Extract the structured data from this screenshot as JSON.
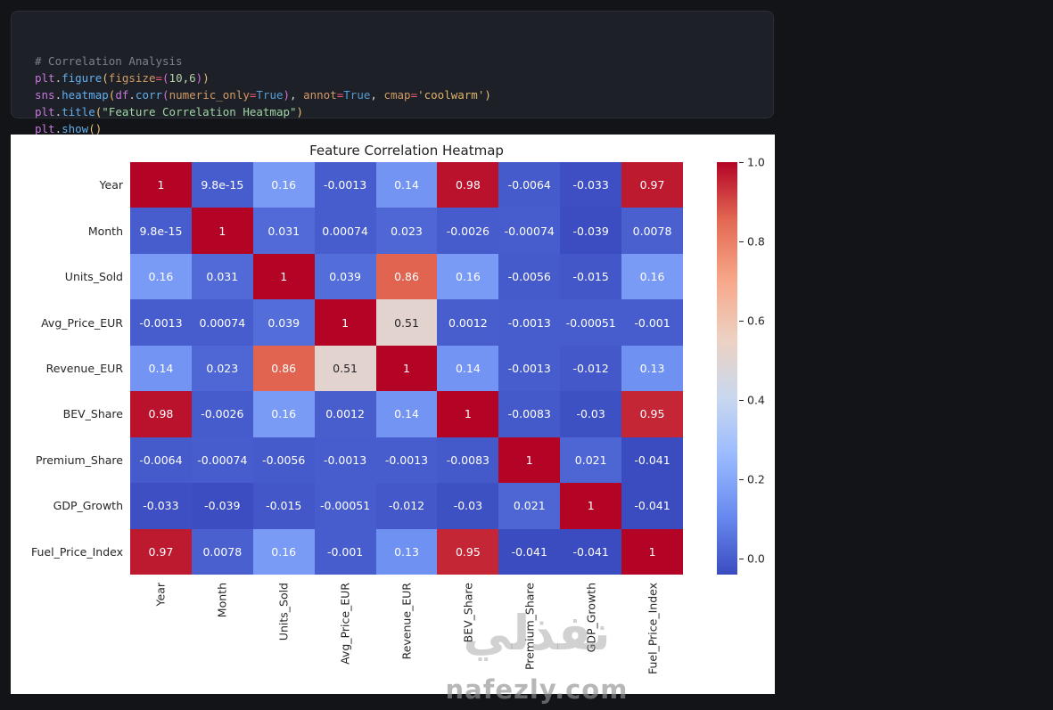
{
  "window": {
    "background": "#121417"
  },
  "code_editor": {
    "background": "#1d2026",
    "lines": [
      {
        "tokens": [
          {
            "text": "# Correlation Analysis",
            "style": "comment"
          }
        ]
      },
      {
        "tokens": [
          {
            "text": "plt",
            "style": "var"
          },
          {
            "text": ".",
            "style": "punc"
          },
          {
            "text": "figure",
            "style": "func"
          },
          {
            "text": "(",
            "style": "brk1"
          },
          {
            "text": "figsize",
            "style": "param"
          },
          {
            "text": "=",
            "style": "op"
          },
          {
            "text": "(",
            "style": "brk2"
          },
          {
            "text": "10",
            "style": "num"
          },
          {
            "text": ",",
            "style": "punc"
          },
          {
            "text": "6",
            "style": "num"
          },
          {
            "text": ")",
            "style": "brk2"
          },
          {
            "text": ")",
            "style": "brk1"
          }
        ]
      },
      {
        "tokens": [
          {
            "text": "sns",
            "style": "var"
          },
          {
            "text": ".",
            "style": "punc"
          },
          {
            "text": "heatmap",
            "style": "func"
          },
          {
            "text": "(",
            "style": "brk1"
          },
          {
            "text": "df",
            "style": "var"
          },
          {
            "text": ".",
            "style": "punc"
          },
          {
            "text": "corr",
            "style": "func"
          },
          {
            "text": "(",
            "style": "brk2"
          },
          {
            "text": "numeric_only",
            "style": "param"
          },
          {
            "text": "=",
            "style": "op"
          },
          {
            "text": "True",
            "style": "const"
          },
          {
            "text": ")",
            "style": "brk2"
          },
          {
            "text": ", ",
            "style": "punc"
          },
          {
            "text": "annot",
            "style": "param"
          },
          {
            "text": "=",
            "style": "op"
          },
          {
            "text": "True",
            "style": "const"
          },
          {
            "text": ", ",
            "style": "punc"
          },
          {
            "text": "cmap",
            "style": "param"
          },
          {
            "text": "=",
            "style": "op"
          },
          {
            "text": "'coolwarm'",
            "style": "str1"
          },
          {
            "text": ")",
            "style": "brk1"
          }
        ]
      },
      {
        "tokens": [
          {
            "text": "plt",
            "style": "var"
          },
          {
            "text": ".",
            "style": "punc"
          },
          {
            "text": "title",
            "style": "func"
          },
          {
            "text": "(",
            "style": "brk1"
          },
          {
            "text": "\"Feature Correlation Heatmap\"",
            "style": "str2"
          },
          {
            "text": ")",
            "style": "brk1"
          }
        ]
      },
      {
        "tokens": [
          {
            "text": "plt",
            "style": "var"
          },
          {
            "text": ".",
            "style": "punc"
          },
          {
            "text": "show",
            "style": "func"
          },
          {
            "text": "(",
            "style": "brk1"
          },
          {
            "text": ")",
            "style": "brk1"
          }
        ]
      }
    ]
  },
  "chart_data": {
    "type": "heatmap",
    "title": "Feature Correlation Heatmap",
    "categories": [
      "Year",
      "Month",
      "Units_Sold",
      "Avg_Price_EUR",
      "Revenue_EUR",
      "BEV_Share",
      "Premium_Share",
      "GDP_Growth",
      "Fuel_Price_Index"
    ],
    "matrix": [
      [
        "1",
        "9.8e-15",
        "0.16",
        "-0.0013",
        "0.14",
        "0.98",
        "-0.0064",
        "-0.033",
        "0.97"
      ],
      [
        "9.8e-15",
        "1",
        "0.031",
        "0.00074",
        "0.023",
        "-0.0026",
        "-0.00074",
        "-0.039",
        "0.0078"
      ],
      [
        "0.16",
        "0.031",
        "1",
        "0.039",
        "0.86",
        "0.16",
        "-0.0056",
        "-0.015",
        "0.16"
      ],
      [
        "-0.0013",
        "0.00074",
        "0.039",
        "1",
        "0.51",
        "0.0012",
        "-0.0013",
        "-0.00051",
        "-0.001"
      ],
      [
        "0.14",
        "0.023",
        "0.86",
        "0.51",
        "1",
        "0.14",
        "-0.0013",
        "-0.012",
        "0.13"
      ],
      [
        "0.98",
        "-0.0026",
        "0.16",
        "0.0012",
        "0.14",
        "1",
        "-0.0083",
        "-0.03",
        "0.95"
      ],
      [
        "-0.0064",
        "-0.00074",
        "-0.0056",
        "-0.0013",
        "-0.0013",
        "-0.0083",
        "1",
        "0.021",
        "-0.041"
      ],
      [
        "-0.033",
        "-0.039",
        "-0.015",
        "-0.00051",
        "-0.012",
        "-0.03",
        "0.021",
        "1",
        "-0.041"
      ],
      [
        "0.97",
        "0.0078",
        "0.16",
        "-0.001",
        "0.13",
        "0.95",
        "-0.041",
        "-0.041",
        "1"
      ]
    ],
    "colormap": "coolwarm",
    "colormap_colors": [
      "#3b4cc0",
      "#688aef",
      "#99baff",
      "#c9d8ef",
      "#edd1c2",
      "#f7a789",
      "#e36a53",
      "#b40426"
    ],
    "vmin": -0.041,
    "vmax": 1.0,
    "annotations_on": true,
    "grid_off": true,
    "colorbar_ticks": [
      "1.0",
      "0.8",
      "0.6",
      "0.4",
      "0.2",
      "0.0"
    ],
    "background": "#ffffff",
    "annot_color_dark": "#262626",
    "annot_color_light": "#ffffff"
  },
  "watermark": {
    "logo_text": "نفذلي",
    "site_text": "nafezly.com"
  }
}
